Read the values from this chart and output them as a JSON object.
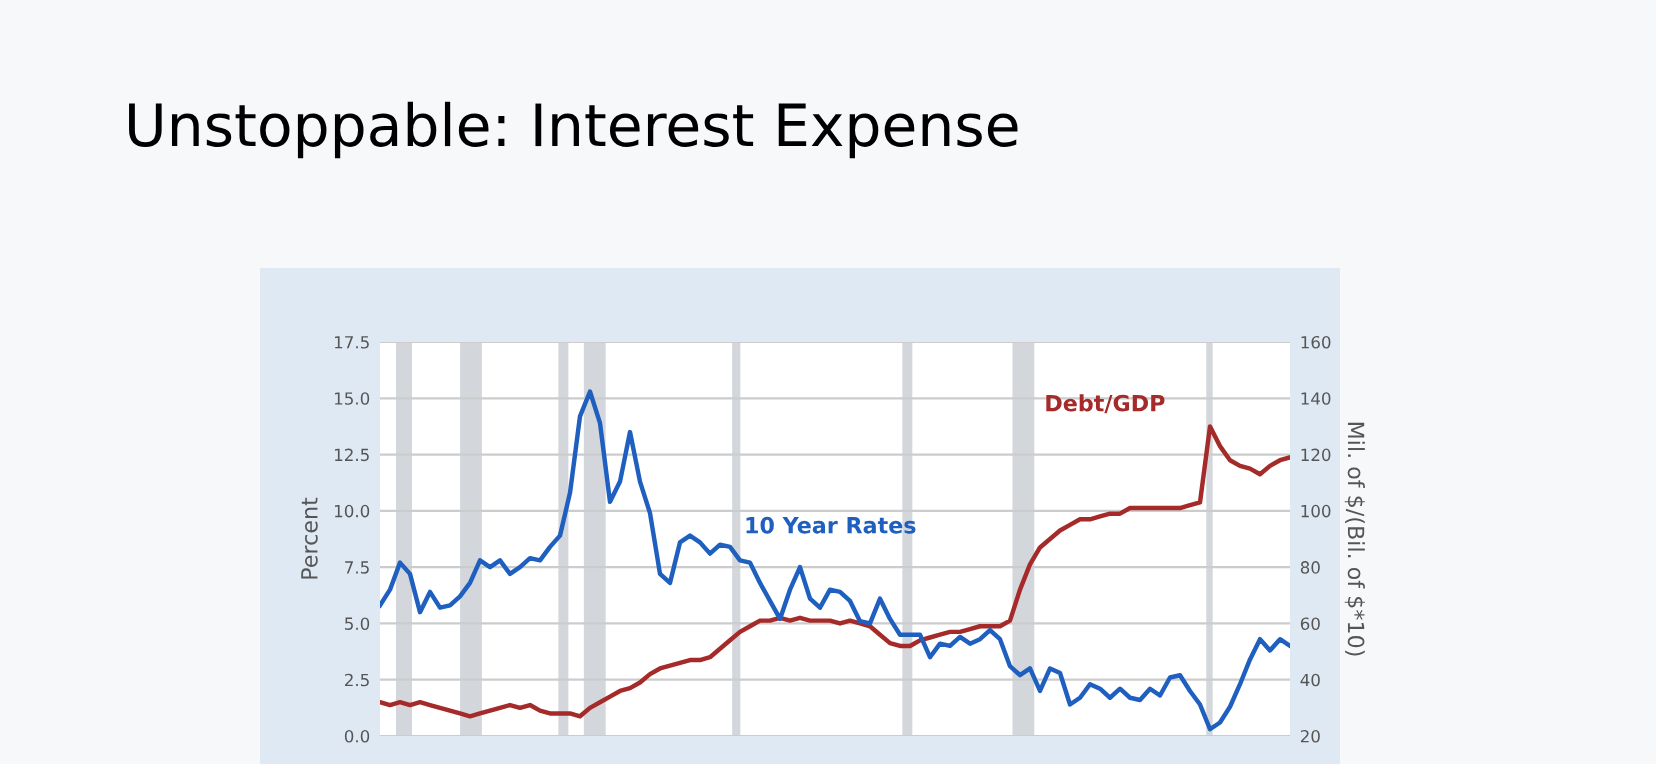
{
  "chart_data": {
    "type": "line",
    "title": "Unstoppable: Interest Expense",
    "ylabel": "Percent",
    "y2label": "Mil. of $/(Bil. of $*10)",
    "categories": [
      null,
      null,
      null,
      null,
      null,
      null,
      null,
      null,
      null,
      null,
      null,
      null,
      null,
      null,
      null,
      null,
      null,
      null,
      null,
      null,
      null,
      null,
      null,
      null,
      null,
      null,
      null,
      null,
      null,
      null,
      null,
      null,
      null,
      null,
      null,
      null,
      null,
      null,
      null,
      null,
      null,
      null,
      null,
      null,
      null,
      null,
      null,
      null,
      null,
      null,
      null,
      null,
      null,
      null,
      null,
      null,
      null,
      null,
      null,
      null,
      null,
      null,
      null,
      null,
      null,
      null,
      null,
      null,
      null,
      null,
      null,
      null,
      null,
      null,
      null,
      null,
      null,
      null,
      null,
      null,
      null,
      null,
      null,
      null,
      null,
      null,
      null,
      null,
      null,
      null,
      null,
      null
    ],
    "series": [
      {
        "name": "10 Year Rates",
        "color": "#1f5fbf",
        "values": [
          5.8,
          6.5,
          7.7,
          7.2,
          5.5,
          6.4,
          5.7,
          5.8,
          6.2,
          6.8,
          7.8,
          7.5,
          7.8,
          7.2,
          7.5,
          7.9,
          7.8,
          8.4,
          8.9,
          10.8,
          14.2,
          15.3,
          13.9,
          10.4,
          11.3,
          13.5,
          11.3,
          9.9,
          7.2,
          6.8,
          8.6,
          8.9,
          8.6,
          8.1,
          8.5,
          8.4,
          7.8,
          7.7,
          6.8,
          6.0,
          5.2,
          6.5,
          7.5,
          6.1,
          5.7,
          6.5,
          6.4,
          6.0,
          5.1,
          5.0,
          6.1,
          5.2,
          4.5,
          4.5,
          4.5,
          3.5,
          4.1,
          4.0,
          4.4,
          4.1,
          4.3,
          4.7,
          4.3,
          3.1,
          2.7,
          3.0,
          2.0,
          3.0,
          2.8,
          1.4,
          1.7,
          2.3,
          2.1,
          1.7,
          2.1,
          1.7,
          1.6,
          2.1,
          1.8,
          2.6,
          2.7,
          2.0,
          1.4,
          0.3,
          0.6,
          1.3,
          2.3,
          3.4,
          4.3,
          3.8,
          4.3,
          4.0
        ]
      },
      {
        "name": "Debt/GDP",
        "color": "#a52a2a",
        "axis": "y2",
        "values": [
          32,
          31,
          32,
          31,
          32,
          31,
          30,
          29,
          28,
          27,
          28,
          29,
          30,
          31,
          30,
          31,
          29,
          28,
          28,
          28,
          27,
          30,
          32,
          34,
          36,
          37,
          39,
          42,
          44,
          45,
          46,
          47,
          47,
          48,
          51,
          54,
          57,
          59,
          61,
          61,
          62,
          61,
          62,
          61,
          61,
          61,
          60,
          61,
          60,
          59,
          56,
          53,
          52,
          52,
          54,
          55,
          56,
          57,
          57,
          58,
          59,
          59,
          59,
          61,
          72,
          81,
          87,
          90,
          93,
          95,
          97,
          97,
          98,
          99,
          99,
          101,
          101,
          101,
          101,
          101,
          101,
          102,
          103,
          130,
          123,
          118,
          116,
          115,
          113,
          116,
          118,
          119
        ]
      }
    ],
    "ylim": [
      0,
      17.5
    ],
    "yticks": [
      {
        "value": 0,
        "label": "0.0"
      },
      {
        "value": 2.5,
        "label": "2.5"
      },
      {
        "value": 5,
        "label": "5.0"
      },
      {
        "value": 7.5,
        "label": "7.5"
      },
      {
        "value": 10,
        "label": "10.0"
      },
      {
        "value": 12.5,
        "label": "12.5"
      },
      {
        "value": 15,
        "label": "15.0"
      },
      {
        "value": 17.5,
        "label": "17.5"
      }
    ],
    "y2lim": [
      20,
      160
    ],
    "y2ticks": [
      20,
      40,
      60,
      80,
      100,
      120,
      140,
      160
    ],
    "grid": "y",
    "legend": false
  }
}
